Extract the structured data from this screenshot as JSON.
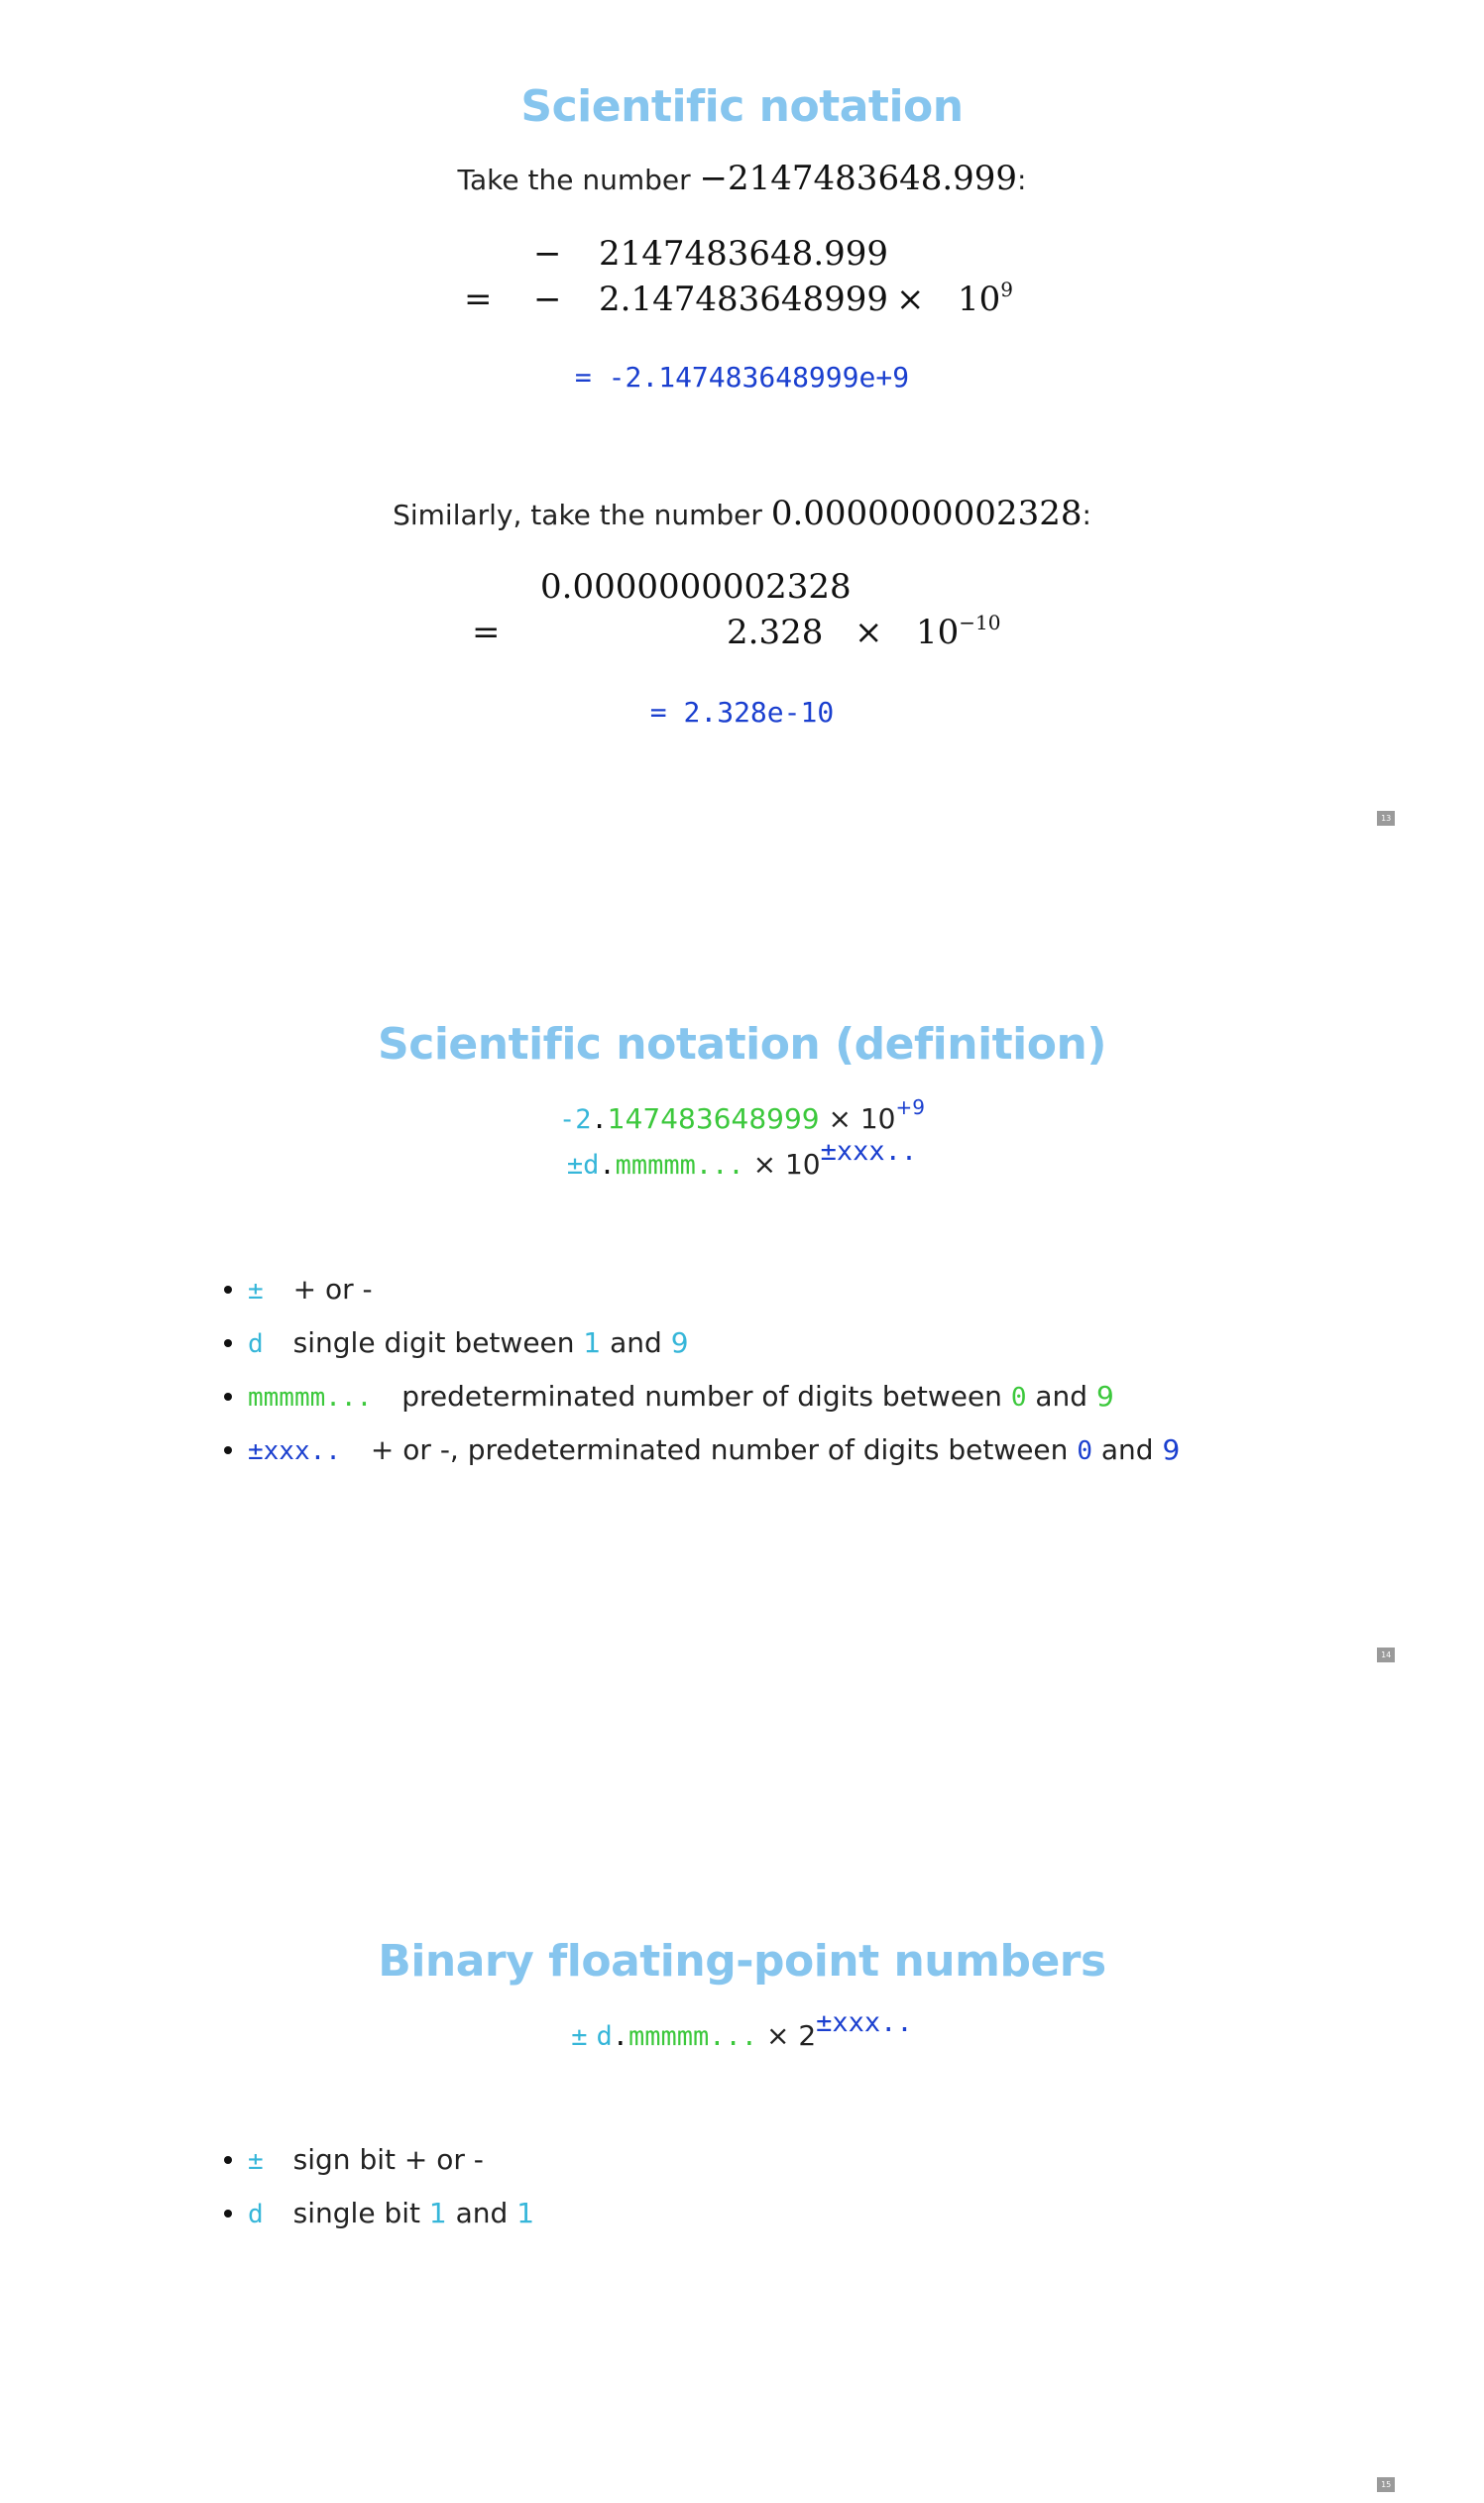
{
  "slides": [
    {
      "number": "13",
      "title": "Scientific notation",
      "intro_prefix": "Take the number ",
      "intro_number": "−2147483648.999",
      "intro_suffix": ":",
      "eq1_row1_sign": "−",
      "eq1_row1_value": "2147483648.999",
      "eq1_row2_eq": "=",
      "eq1_row2_sign": "−",
      "eq1_row2_value": "2.147483648999",
      "eq1_row2_times": "×",
      "eq1_row2_base": "10",
      "eq1_row2_exp": "9",
      "code1_eq": "=",
      "code1_value": "-2.147483648999e+9",
      "intro2_prefix": "Similarly, take the number ",
      "intro2_number": "0.0000000002328",
      "intro2_suffix": ":",
      "eq2_row1_value": "0.0000000002328",
      "eq2_row2_eq": "=",
      "eq2_row2_value": "2.328",
      "eq2_row2_times": "×",
      "eq2_row2_base": "10",
      "eq2_row2_exp": "−10",
      "code2_eq": "=",
      "code2_value": "2.328e-10"
    },
    {
      "number": "14",
      "title": "Scientific notation (definition)",
      "line1": {
        "sign_digit": "-2",
        "dot": ".",
        "mantissa": "147483648999",
        "times": "× 10",
        "exponent": "+9"
      },
      "line2": {
        "sign_digit": "±d",
        "dot": ".",
        "mantissa": "mmmmm...",
        "times": "× 10",
        "exponent": "±xxx.."
      },
      "bullets": [
        {
          "term": "±",
          "text": "+ or -"
        },
        {
          "term": "d",
          "text_before": "single digit between ",
          "digit_a": "1",
          "text_mid": " and ",
          "digit_b": "9"
        },
        {
          "term": "mmmmm...",
          "text_before": "predeterminated number of digits between ",
          "digit_a": "0",
          "text_mid": " and ",
          "digit_b": "9"
        },
        {
          "term": "±xxx..",
          "text_before": "+ or -, predeterminated number of digits between ",
          "digit_a": "0",
          "text_mid": " and ",
          "digit_b": "9"
        }
      ]
    },
    {
      "number": "15",
      "title": "Binary floating-point numbers",
      "formula": {
        "sign": "±",
        "digit": "d",
        "dot": ".",
        "mantissa": "mmmmm...",
        "times": "× 2",
        "exponent": "±xxx.."
      },
      "bullets": [
        {
          "term": "±",
          "text": "sign bit + or -"
        },
        {
          "term": "d",
          "text_before": "single bit ",
          "digit_a": "1",
          "text_mid": " and ",
          "digit_b": "1"
        }
      ]
    }
  ],
  "colors": {
    "title": "#86c5ee",
    "cyan": "#36b6d9",
    "green": "#3cc83c",
    "blue": "#1a3fcf"
  }
}
